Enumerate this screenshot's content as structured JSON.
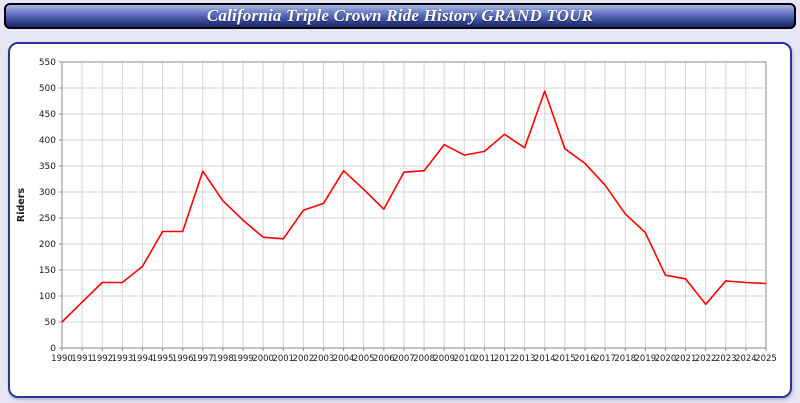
{
  "header": {
    "title": "California Triple Crown Ride History GRAND TOUR"
  },
  "chart_data": {
    "type": "line",
    "title": "California Triple Crown Ride History GRAND TOUR",
    "xlabel": "",
    "ylabel": "Riders",
    "ylim": [
      0,
      550
    ],
    "ytick_step": 50,
    "grid": true,
    "legend": "none",
    "line_color": "#ff0000",
    "grid_color": "#d4d4d4",
    "axis_color": "#888888",
    "label_color": "#1a1a1a",
    "plot_bg": "#ffffff",
    "x": [
      1990,
      1991,
      1992,
      1993,
      1994,
      1995,
      1996,
      1997,
      1998,
      1999,
      2000,
      2001,
      2002,
      2003,
      2004,
      2005,
      2006,
      2007,
      2008,
      2009,
      2010,
      2011,
      2012,
      2013,
      2014,
      2015,
      2016,
      2017,
      2018,
      2019,
      2020,
      2021,
      2022,
      2023,
      2024,
      2025
    ],
    "values": [
      50,
      88,
      126,
      126,
      157,
      224,
      224,
      340,
      283,
      246,
      213,
      210,
      265,
      278,
      341,
      305,
      267,
      338,
      341,
      391,
      371,
      378,
      411,
      385,
      494,
      383,
      355,
      313,
      258,
      222,
      140,
      133,
      84,
      129,
      126,
      124
    ]
  }
}
